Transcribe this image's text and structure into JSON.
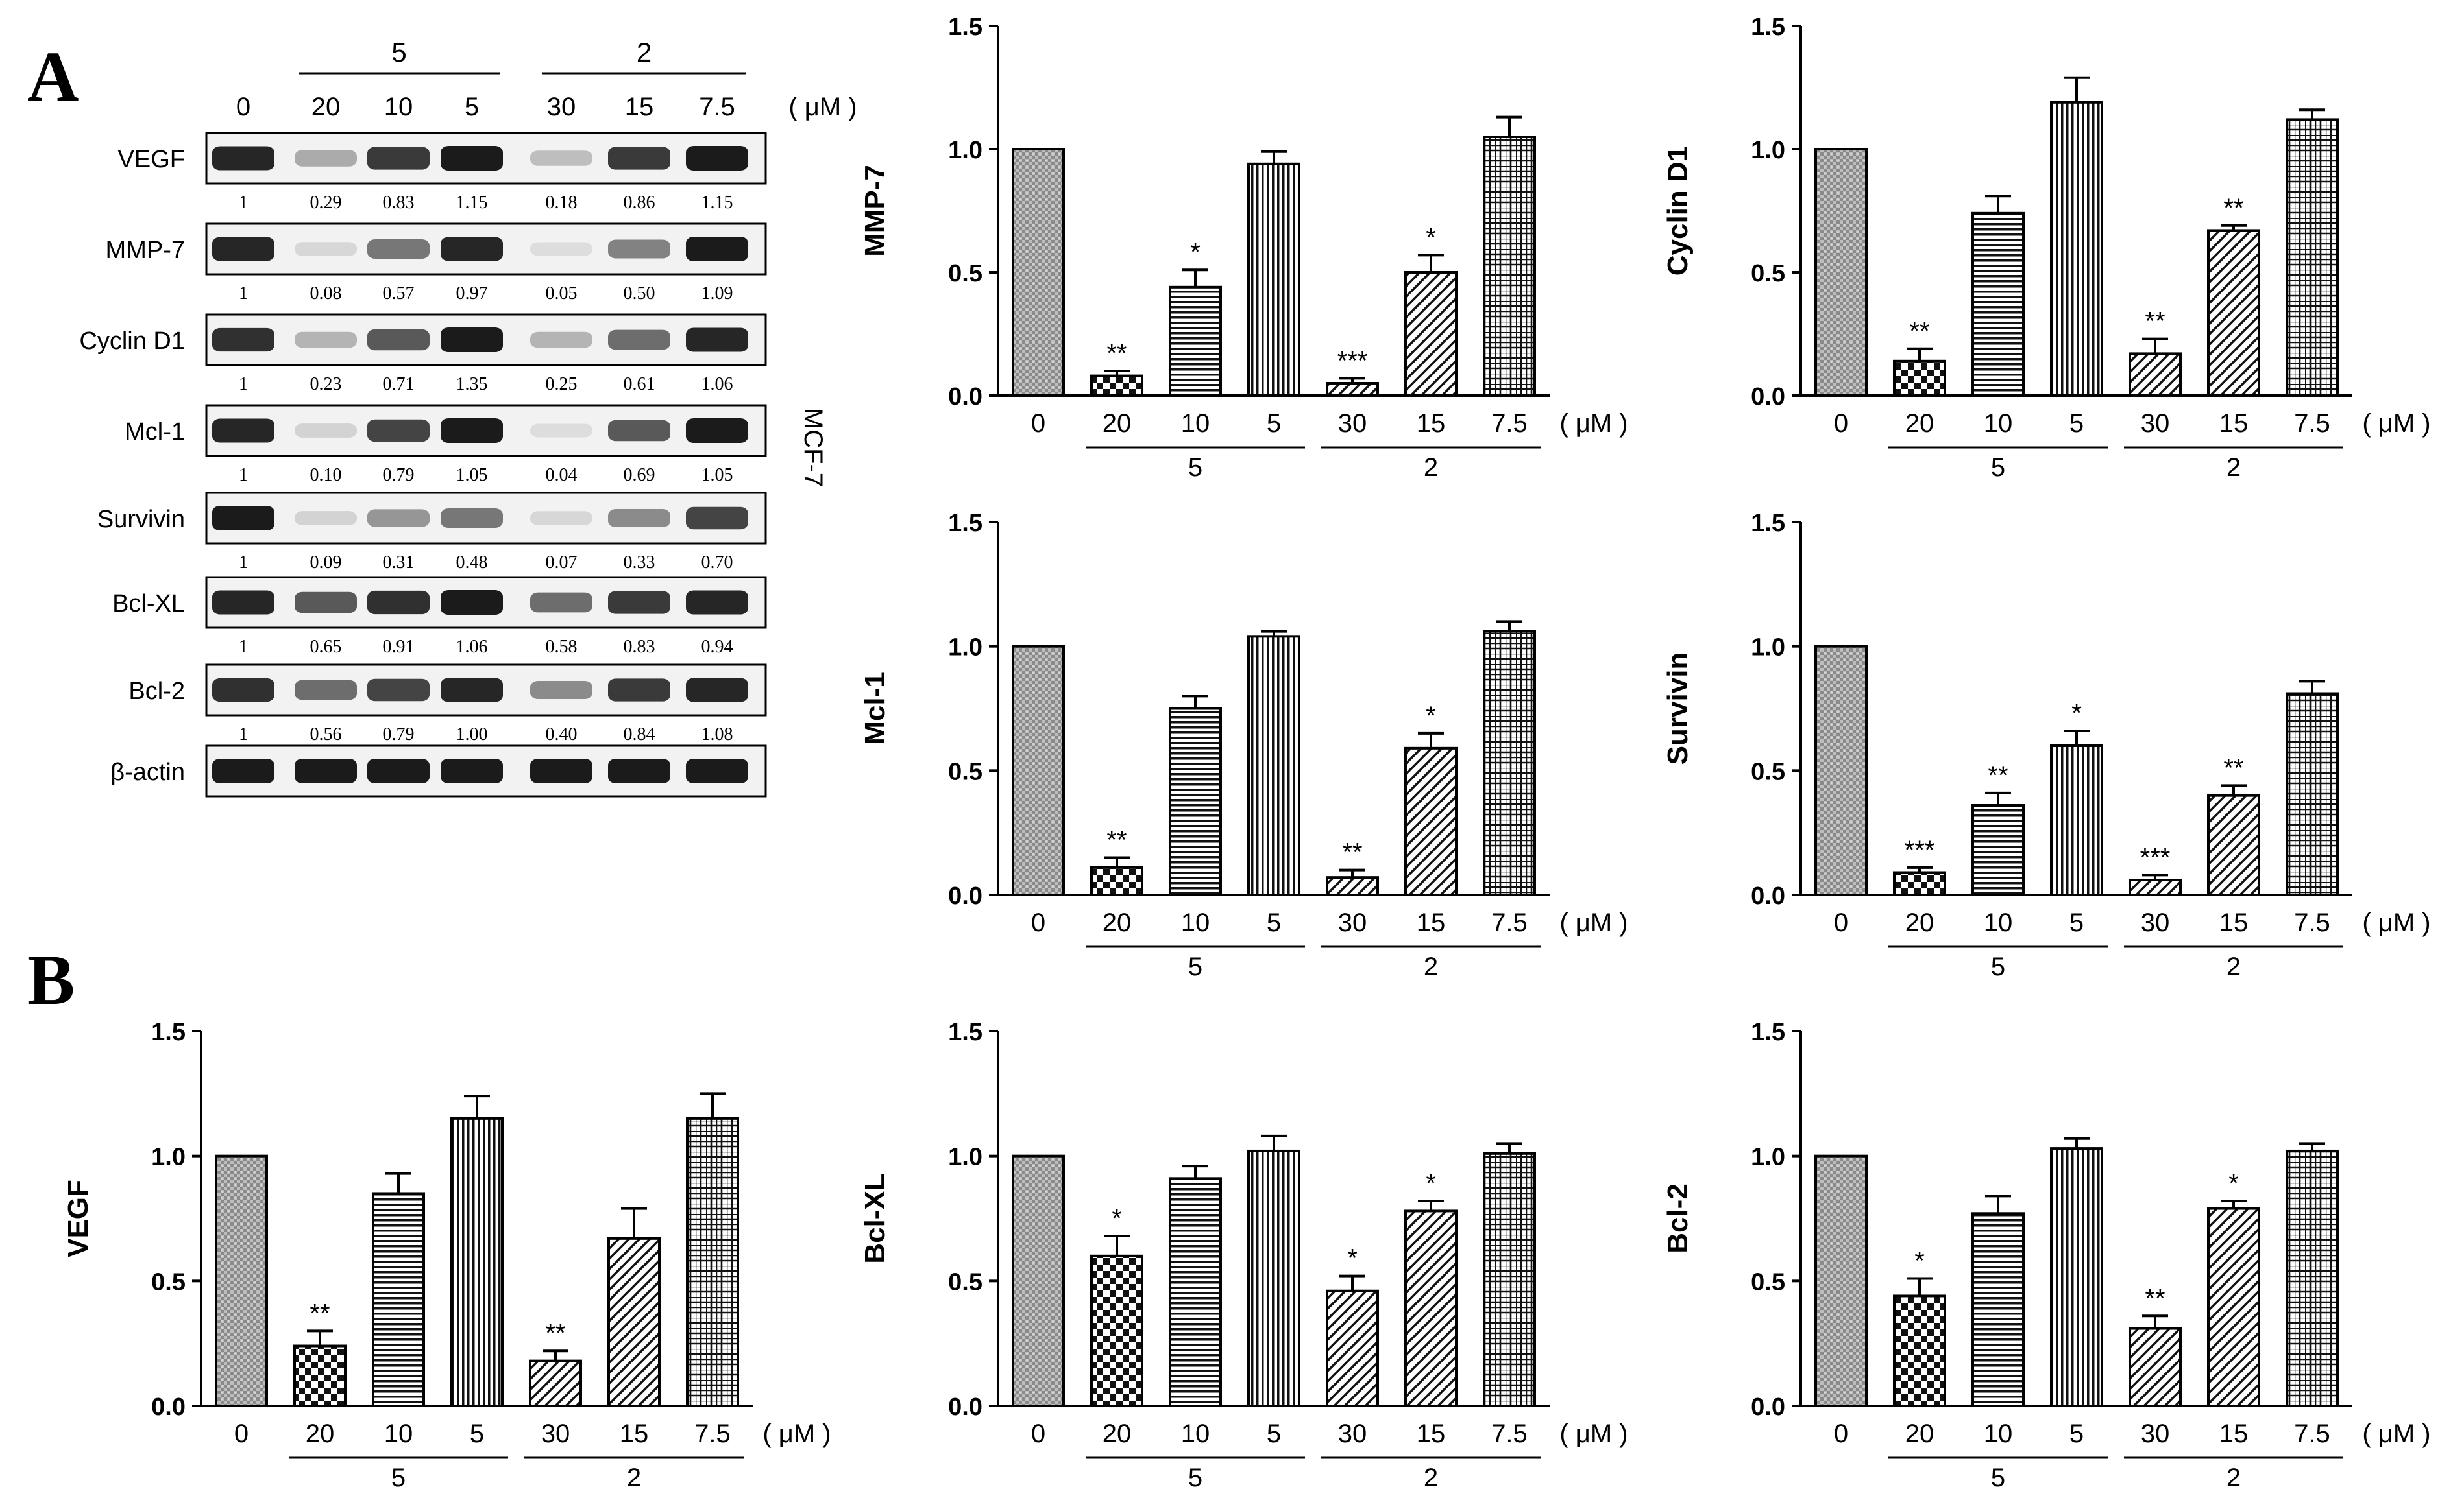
{
  "panel_labels": {
    "a": "A",
    "b": "B"
  },
  "units": "( μM )",
  "blot": {
    "cell_line": "MCF-7",
    "lanes": [
      "0",
      "20",
      "10",
      "5",
      "30",
      "15",
      "7.5"
    ],
    "groups": [
      {
        "label": "5",
        "lanes": [
          "20",
          "10",
          "5"
        ]
      },
      {
        "label": "2",
        "lanes": [
          "30",
          "15",
          "7.5"
        ]
      }
    ],
    "rows": [
      {
        "protein": "VEGF",
        "ratios": [
          "1",
          "0.29",
          "0.83",
          "1.15",
          "0.18",
          "0.86",
          "1.15"
        ],
        "intensity": [
          0.95,
          0.3,
          0.85,
          1.0,
          0.2,
          0.85,
          1.0
        ]
      },
      {
        "protein": "MMP-7",
        "ratios": [
          "1",
          "0.08",
          "0.57",
          "0.97",
          "0.05",
          "0.50",
          "1.09"
        ],
        "intensity": [
          0.95,
          0.08,
          0.55,
          0.95,
          0.05,
          0.5,
          1.0
        ]
      },
      {
        "protein": "Cyclin D1",
        "ratios": [
          "1",
          "0.23",
          "0.71",
          "1.35",
          "0.25",
          "0.61",
          "1.06"
        ],
        "intensity": [
          0.9,
          0.25,
          0.7,
          1.0,
          0.25,
          0.6,
          0.95
        ]
      },
      {
        "protein": "Mcl-1",
        "ratios": [
          "1",
          "0.10",
          "0.79",
          "1.05",
          "0.04",
          "0.69",
          "1.05"
        ],
        "intensity": [
          0.95,
          0.1,
          0.8,
          1.0,
          0.05,
          0.7,
          1.0
        ]
      },
      {
        "protein": "Survivin",
        "ratios": [
          "1",
          "0.09",
          "0.31",
          "0.48",
          "0.07",
          "0.33",
          "0.70"
        ],
        "intensity": [
          1.0,
          0.1,
          0.4,
          0.55,
          0.08,
          0.45,
          0.8
        ]
      },
      {
        "protein": "Bcl-XL",
        "ratios": [
          "1",
          "0.65",
          "0.91",
          "1.06",
          "0.58",
          "0.83",
          "0.94"
        ],
        "intensity": [
          0.95,
          0.7,
          0.9,
          1.0,
          0.6,
          0.85,
          0.95
        ]
      },
      {
        "protein": "Bcl-2",
        "ratios": [
          "1",
          "0.56",
          "0.79",
          "1.00",
          "0.40",
          "0.84",
          "1.08"
        ],
        "intensity": [
          0.9,
          0.6,
          0.8,
          0.95,
          0.45,
          0.85,
          0.95
        ]
      },
      {
        "protein": "β-actin",
        "ratios": [],
        "intensity": [
          1,
          1,
          1,
          1,
          1,
          1,
          1
        ]
      }
    ]
  },
  "chart_data": [
    {
      "type": "bar",
      "ylabel": "MMP-7",
      "ylim": [
        0,
        1.5
      ],
      "yticks": [
        "0.0",
        "0.5",
        "1.0",
        "1.5"
      ],
      "categories": [
        "0",
        "20",
        "10",
        "5",
        "30",
        "15",
        "7.5"
      ],
      "group_labels": [
        "5",
        "2"
      ],
      "xunit": "( μM )",
      "values": [
        1.0,
        0.08,
        0.44,
        0.94,
        0.05,
        0.5,
        1.05
      ],
      "errors": [
        0,
        0.02,
        0.07,
        0.05,
        0.02,
        0.07,
        0.08
      ],
      "significance": [
        "",
        "**",
        "*",
        "",
        "***",
        "*",
        ""
      ]
    },
    {
      "type": "bar",
      "ylabel": "Cyclin D1",
      "ylim": [
        0,
        1.5
      ],
      "yticks": [
        "0.0",
        "0.5",
        "1.0",
        "1.5"
      ],
      "categories": [
        "0",
        "20",
        "10",
        "5",
        "30",
        "15",
        "7.5"
      ],
      "group_labels": [
        "5",
        "2"
      ],
      "xunit": "( μM )",
      "values": [
        1.0,
        0.14,
        0.74,
        1.19,
        0.17,
        0.67,
        1.12
      ],
      "errors": [
        0,
        0.05,
        0.07,
        0.1,
        0.06,
        0.02,
        0.04
      ],
      "significance": [
        "",
        "**",
        "",
        "",
        "**",
        "**",
        ""
      ]
    },
    {
      "type": "bar",
      "ylabel": "Mcl-1",
      "ylim": [
        0,
        1.5
      ],
      "yticks": [
        "0.0",
        "0.5",
        "1.0",
        "1.5"
      ],
      "categories": [
        "0",
        "20",
        "10",
        "5",
        "30",
        "15",
        "7.5"
      ],
      "group_labels": [
        "5",
        "2"
      ],
      "xunit": "( μM )",
      "values": [
        1.0,
        0.11,
        0.75,
        1.04,
        0.07,
        0.59,
        1.06
      ],
      "errors": [
        0,
        0.04,
        0.05,
        0.02,
        0.03,
        0.06,
        0.04
      ],
      "significance": [
        "",
        "**",
        "",
        "",
        "**",
        "*",
        ""
      ]
    },
    {
      "type": "bar",
      "ylabel": "Survivin",
      "ylim": [
        0,
        1.5
      ],
      "yticks": [
        "0.0",
        "0.5",
        "1.0",
        "1.5"
      ],
      "categories": [
        "0",
        "20",
        "10",
        "5",
        "30",
        "15",
        "7.5"
      ],
      "group_labels": [
        "5",
        "2"
      ],
      "xunit": "( μM )",
      "values": [
        1.0,
        0.09,
        0.36,
        0.6,
        0.06,
        0.4,
        0.81
      ],
      "errors": [
        0,
        0.02,
        0.05,
        0.06,
        0.02,
        0.04,
        0.05
      ],
      "significance": [
        "",
        "***",
        "**",
        "*",
        "***",
        "**",
        ""
      ]
    },
    {
      "type": "bar",
      "ylabel": "VEGF",
      "ylim": [
        0,
        1.5
      ],
      "yticks": [
        "0.0",
        "0.5",
        "1.0",
        "1.5"
      ],
      "categories": [
        "0",
        "20",
        "10",
        "5",
        "30",
        "15",
        "7.5"
      ],
      "group_labels": [
        "5",
        "2"
      ],
      "xunit": "( μM )",
      "values": [
        1.0,
        0.24,
        0.85,
        1.15,
        0.18,
        0.67,
        1.15
      ],
      "errors": [
        0,
        0.06,
        0.08,
        0.09,
        0.04,
        0.12,
        0.1
      ],
      "significance": [
        "",
        "**",
        "",
        "",
        "**",
        "",
        ""
      ]
    },
    {
      "type": "bar",
      "ylabel": "Bcl-XL",
      "ylim": [
        0,
        1.5
      ],
      "yticks": [
        "0.0",
        "0.5",
        "1.0",
        "1.5"
      ],
      "categories": [
        "0",
        "20",
        "10",
        "5",
        "30",
        "15",
        "7.5"
      ],
      "group_labels": [
        "5",
        "2"
      ],
      "xunit": "( μM )",
      "values": [
        1.0,
        0.6,
        0.91,
        1.02,
        0.46,
        0.78,
        1.01
      ],
      "errors": [
        0,
        0.08,
        0.05,
        0.06,
        0.06,
        0.04,
        0.04
      ],
      "significance": [
        "",
        "*",
        "",
        "",
        "*",
        "*",
        ""
      ]
    },
    {
      "type": "bar",
      "ylabel": "Bcl-2",
      "ylim": [
        0,
        1.5
      ],
      "yticks": [
        "0.0",
        "0.5",
        "1.0",
        "1.5"
      ],
      "categories": [
        "0",
        "20",
        "10",
        "5",
        "30",
        "15",
        "7.5"
      ],
      "group_labels": [
        "5",
        "2"
      ],
      "xunit": "( μM )",
      "values": [
        1.0,
        0.44,
        0.77,
        1.03,
        0.31,
        0.79,
        1.02
      ],
      "errors": [
        0,
        0.07,
        0.07,
        0.04,
        0.05,
        0.03,
        0.03
      ],
      "significance": [
        "",
        "*",
        "",
        "",
        "**",
        "*",
        ""
      ]
    }
  ]
}
